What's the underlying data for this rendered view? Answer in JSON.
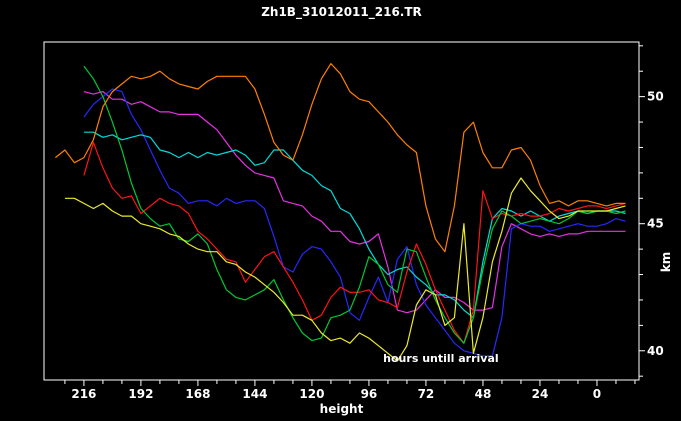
{
  "window": {
    "background": "#000000",
    "foreground": "#ffffff"
  },
  "chart_data": {
    "type": "line",
    "title": "Zh1B_31012011_216.TR",
    "annotation": {
      "text": "hours untill arrival",
      "x": 90,
      "y": 39.55
    },
    "x_axis": {
      "label": "height",
      "side": "bottom",
      "direction": "reversed",
      "left_value": 232.8,
      "right_value": -17.7,
      "major_ticks": [
        216,
        192,
        168,
        144,
        120,
        96,
        72,
        48,
        24,
        0
      ],
      "minor_tick_start": 224,
      "minor_tick_end": -16,
      "minor_tick_step": 8
    },
    "y_axis": {
      "label": "km",
      "side": "right",
      "top_value": 52.15,
      "bottom_value": 38.85,
      "major_ticks": [
        40,
        45,
        50
      ],
      "minor_tick_start": 39,
      "minor_tick_end": 52,
      "minor_tick_step": 1
    },
    "series": [
      {
        "name": "magenta",
        "color": "#e632e6",
        "x_start": 216,
        "x_step": -4,
        "values": [
          50.2,
          50.1,
          50.2,
          49.9,
          49.9,
          49.7,
          49.8,
          49.6,
          49.4,
          49.4,
          49.3,
          49.3,
          49.3,
          49.0,
          48.7,
          48.2,
          47.7,
          47.3,
          47.0,
          46.9,
          46.8,
          45.9,
          45.8,
          45.7,
          45.3,
          45.1,
          44.7,
          44.7,
          44.3,
          44.2,
          44.3,
          44.6,
          43.3,
          41.6,
          41.5,
          41.6,
          42.0,
          42.4,
          42.1,
          42.1,
          41.9,
          41.6,
          41.6,
          41.7,
          44.1,
          45.0,
          44.8,
          44.6,
          44.5,
          44.6,
          44.5,
          44.6,
          44.6,
          44.7,
          44.7,
          44.7,
          44.7,
          44.7
        ]
      },
      {
        "name": "blue",
        "color": "#2828ff",
        "x_start": 216,
        "x_step": -4,
        "values": [
          49.2,
          49.7,
          50.0,
          50.3,
          50.2,
          49.3,
          48.7,
          47.9,
          47.1,
          46.4,
          46.2,
          45.8,
          45.9,
          45.9,
          45.7,
          46.0,
          45.8,
          45.9,
          45.9,
          45.6,
          44.5,
          43.3,
          43.1,
          43.8,
          44.1,
          44.0,
          43.5,
          42.9,
          41.5,
          41.2,
          42.1,
          42.9,
          41.9,
          43.6,
          44.1,
          42.6,
          41.8,
          41.3,
          40.8,
          40.3,
          40.0,
          39.9,
          39.8,
          39.8,
          41.3,
          44.8,
          45.0,
          44.9,
          44.9,
          44.7,
          44.8,
          44.9,
          45.0,
          44.9,
          44.9,
          45.0,
          45.2,
          45.1
        ]
      },
      {
        "name": "cyan",
        "color": "#00dcdc",
        "x_start": 216,
        "x_step": -4,
        "values": [
          48.6,
          48.6,
          48.4,
          48.5,
          48.3,
          48.4,
          48.5,
          48.4,
          47.9,
          47.8,
          47.6,
          47.8,
          47.6,
          47.8,
          47.7,
          47.8,
          47.9,
          47.7,
          47.3,
          47.4,
          47.9,
          47.9,
          47.5,
          47.1,
          46.9,
          46.5,
          46.3,
          45.6,
          45.4,
          44.8,
          44.0,
          43.4,
          43.0,
          43.2,
          43.3,
          42.9,
          42.6,
          42.2,
          42.2,
          42.0,
          41.6,
          41.3,
          43.5,
          45.2,
          45.6,
          45.5,
          45.3,
          45.5,
          45.3,
          45.1,
          45.3,
          45.4,
          45.5,
          45.4,
          45.5,
          45.5,
          45.5,
          45.4
        ]
      },
      {
        "name": "red",
        "color": "#ff1414",
        "x_start": 216,
        "x_step": -4,
        "values": [
          46.9,
          48.2,
          47.2,
          46.4,
          46.0,
          46.1,
          45.4,
          45.7,
          46.0,
          45.8,
          45.7,
          45.4,
          44.7,
          44.4,
          44.0,
          43.6,
          43.5,
          42.7,
          43.2,
          43.7,
          43.9,
          43.3,
          42.7,
          42.0,
          41.2,
          41.4,
          42.1,
          42.5,
          42.3,
          42.3,
          42.4,
          42.0,
          41.9,
          41.7,
          43.1,
          44.2,
          43.4,
          42.4,
          41.6,
          40.8,
          40.3,
          41.6,
          46.3,
          45.2,
          45.4,
          45.3,
          45.4,
          45.3,
          45.3,
          45.4,
          45.6,
          45.5,
          45.6,
          45.7,
          45.7,
          45.6,
          45.7,
          45.8
        ]
      },
      {
        "name": "green",
        "color": "#00c832",
        "x_start": 216,
        "x_step": -4,
        "values": [
          51.2,
          50.7,
          50.0,
          49.0,
          47.9,
          46.6,
          45.6,
          45.2,
          44.9,
          45.0,
          44.4,
          44.3,
          44.6,
          44.2,
          43.2,
          42.4,
          42.1,
          42.0,
          42.2,
          42.4,
          42.8,
          42.0,
          41.3,
          40.7,
          40.4,
          40.5,
          41.3,
          41.4,
          41.6,
          42.5,
          43.7,
          43.4,
          42.6,
          42.3,
          44.0,
          43.9,
          42.9,
          42.0,
          41.3,
          40.7,
          40.3,
          41.3,
          43.2,
          44.8,
          45.5,
          45.3,
          45.0,
          45.1,
          45.2,
          45.1,
          45.0,
          45.2,
          45.5,
          45.4,
          45.5,
          45.5,
          45.4,
          45.5
        ]
      },
      {
        "name": "yellow",
        "color": "#ebeb28",
        "x_start": 224,
        "x_step": -4,
        "values": [
          46.0,
          46.0,
          45.8,
          45.6,
          45.8,
          45.5,
          45.3,
          45.3,
          45.0,
          44.9,
          44.8,
          44.6,
          44.5,
          44.2,
          44.0,
          43.9,
          43.9,
          43.5,
          43.4,
          43.1,
          42.9,
          42.6,
          42.3,
          41.9,
          41.4,
          41.4,
          41.2,
          40.7,
          40.4,
          40.5,
          40.3,
          40.7,
          40.5,
          40.2,
          39.9,
          39.6,
          40.2,
          41.8,
          42.4,
          42.2,
          41.0,
          41.3,
          45.0,
          39.9,
          41.3,
          43.5,
          44.7,
          46.2,
          46.8,
          46.3,
          45.9,
          45.5,
          45.2,
          45.3,
          45.5,
          45.5,
          45.5,
          45.5,
          45.6,
          45.7
        ]
      },
      {
        "name": "orange",
        "color": "#ff8000",
        "x_start": 228,
        "x_step": -4,
        "values": [
          47.6,
          47.9,
          47.4,
          47.6,
          48.3,
          49.6,
          50.2,
          50.5,
          50.8,
          50.7,
          50.8,
          51.0,
          50.7,
          50.5,
          50.4,
          50.3,
          50.6,
          50.8,
          50.8,
          50.8,
          50.8,
          50.3,
          49.3,
          48.2,
          47.7,
          47.5,
          48.5,
          49.7,
          50.7,
          51.3,
          50.9,
          50.2,
          49.9,
          49.8,
          49.4,
          49.0,
          48.5,
          48.1,
          47.8,
          45.7,
          44.4,
          43.9,
          45.7,
          48.6,
          49.0,
          47.8,
          47.2,
          47.2,
          47.9,
          48.0,
          47.5,
          46.5,
          45.8,
          45.9,
          45.7,
          45.9,
          45.9,
          45.8,
          45.7,
          45.8,
          45.8
        ]
      }
    ]
  }
}
